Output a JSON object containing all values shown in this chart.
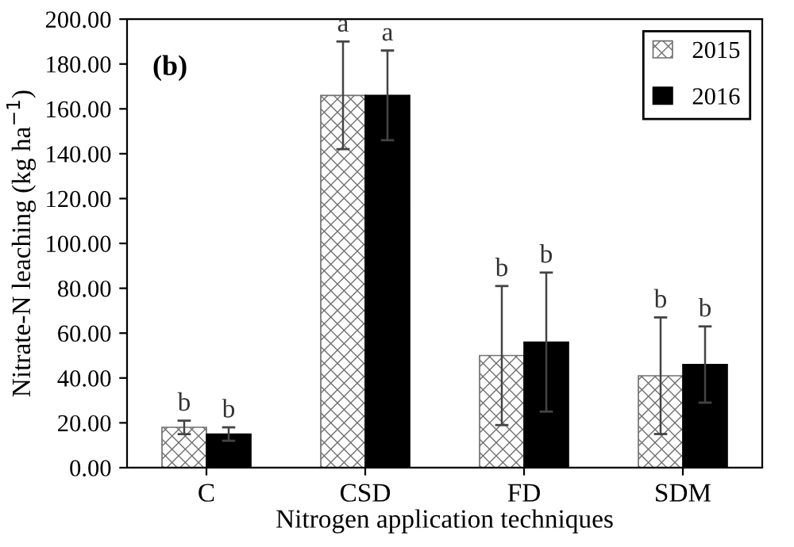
{
  "chart_data": {
    "type": "bar",
    "xlabel": "Nitrogen application techniques",
    "ylabel": "Nitrate-N leaching (kg ha$^{−1}$)",
    "categories": [
      "C",
      "CSD",
      "FD",
      "SDM"
    ],
    "series": [
      {
        "name": "2015",
        "color": "#707070",
        "values": [
          18,
          166,
          50,
          41
        ],
        "errors": [
          3,
          24,
          31,
          26
        ]
      },
      {
        "name": "2016",
        "color": "#000000",
        "values": [
          15,
          166,
          56,
          46
        ],
        "errors": [
          3,
          20,
          31,
          17
        ]
      }
    ],
    "ylim": [
      0,
      200
    ],
    "yticks": [
      {
        "value": 0,
        "label": "0.00"
      },
      {
        "value": 20,
        "label": "20.00"
      },
      {
        "value": 40,
        "label": "40.00"
      },
      {
        "value": 60,
        "label": "60.00"
      },
      {
        "value": 80,
        "label": "80.00"
      },
      {
        "value": 100,
        "label": "100.00"
      },
      {
        "value": 120,
        "label": "120.00"
      },
      {
        "value": 140,
        "label": "140.00"
      },
      {
        "value": 160,
        "label": "160.00"
      },
      {
        "value": 180,
        "label": "180.00"
      },
      {
        "value": 200,
        "label": "200.00"
      }
    ],
    "legend": "top right",
    "grid": false,
    "annotations": [
      "(b)",
      "b",
      "b",
      "a",
      "a",
      "b",
      "b",
      "b",
      "b"
    ]
  }
}
